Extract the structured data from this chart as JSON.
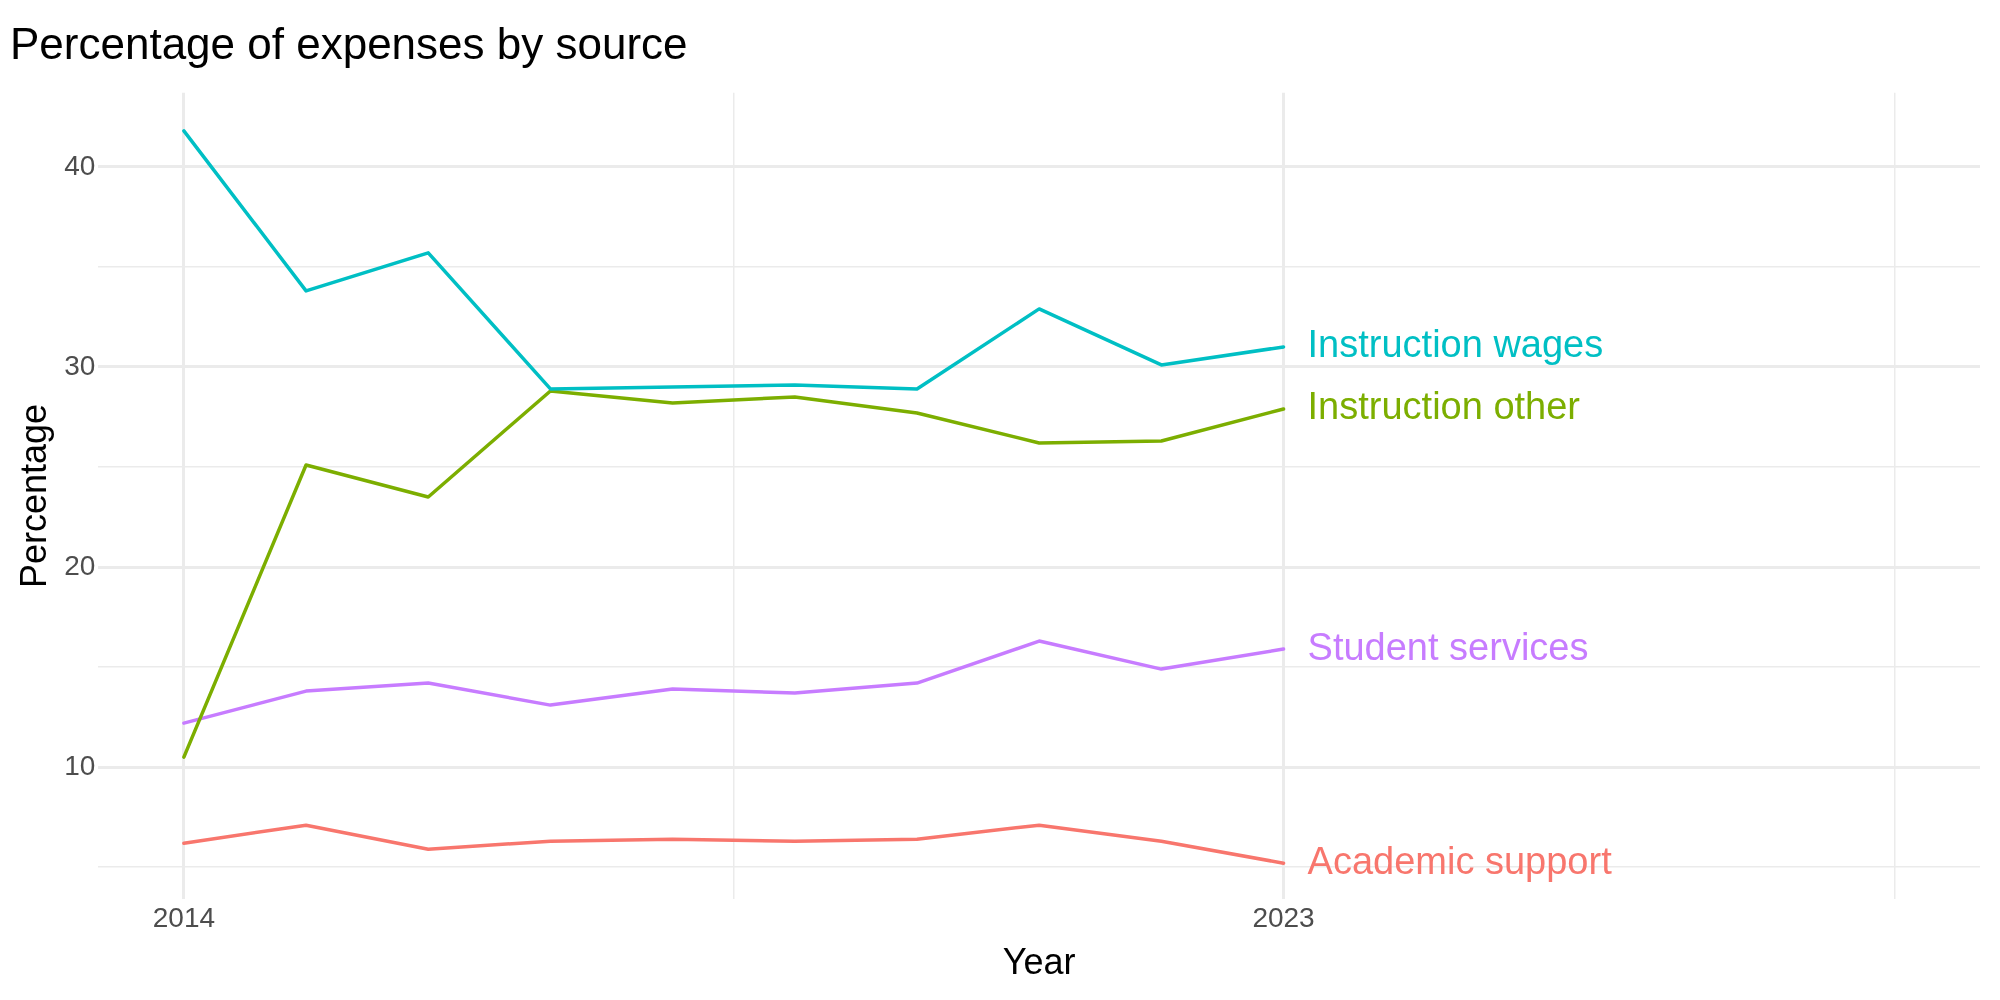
{
  "chart_data": {
    "type": "line",
    "title": "Percentage of expenses by source",
    "xlabel": "Year",
    "ylabel": "Percentage",
    "x": [
      2014,
      2015,
      2016,
      2017,
      2018,
      2019,
      2020,
      2021,
      2022,
      2023
    ],
    "series": [
      {
        "name": "Instruction wages",
        "color": "#00bfc4",
        "values": [
          41.8,
          33.8,
          35.7,
          28.9,
          29.0,
          29.1,
          28.9,
          32.9,
          30.1,
          31.0
        ]
      },
      {
        "name": "Instruction other",
        "color": "#7cae00",
        "values": [
          10.5,
          25.1,
          23.5,
          28.8,
          28.2,
          28.5,
          27.7,
          26.2,
          26.3,
          27.9
        ]
      },
      {
        "name": "Student services",
        "color": "#c77cff",
        "values": [
          12.2,
          13.8,
          14.2,
          13.1,
          13.9,
          13.7,
          14.2,
          16.3,
          14.9,
          15.9
        ]
      },
      {
        "name": "Academic support",
        "color": "#f8766d",
        "values": [
          6.2,
          7.1,
          5.9,
          6.3,
          6.4,
          6.3,
          6.4,
          7.1,
          6.3,
          5.2
        ]
      }
    ],
    "xlim": [
      2013.3,
      2028.7
    ],
    "xticks": [
      2014,
      {
        "value": 2018.5,
        "label": null
      },
      2023,
      {
        "value": 2028,
        "label": null
      }
    ],
    "ylim": [
      3.4,
      43.7
    ],
    "yticks": [
      {
        "value": 5,
        "label": null
      },
      10,
      {
        "value": 15,
        "label": null
      },
      20,
      {
        "value": 25,
        "label": null
      },
      30,
      {
        "value": 35,
        "label": null
      },
      40
    ],
    "grid": true,
    "legend": false,
    "marker": "none",
    "line_style": "solid"
  }
}
